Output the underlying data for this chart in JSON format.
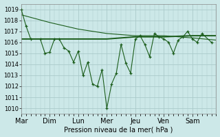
{
  "bg_color": "#cce8e8",
  "grid_color": "#aacaca",
  "line_color": "#1a5c1a",
  "xlabel": "Pression niveau de la mer( hPa )",
  "ylim": [
    1009.5,
    1019.5
  ],
  "day_labels": [
    "Mar",
    "Dim",
    "Lun",
    "Mer",
    "Jeu",
    "Ven",
    "Sam"
  ],
  "day_positions": [
    0,
    6,
    12,
    18,
    24,
    30,
    36
  ],
  "xlim_max": 41,
  "line1_x": [
    0,
    1,
    2,
    4,
    5,
    6,
    7,
    8,
    9,
    10,
    11,
    12,
    13,
    14,
    15,
    16,
    17,
    18,
    19,
    20,
    21,
    22,
    23,
    24,
    25,
    26,
    27,
    28,
    29,
    30,
    31,
    32,
    33,
    34,
    35,
    36,
    37,
    38,
    40
  ],
  "line1_y": [
    1019.0,
    1017.5,
    1016.3,
    1016.3,
    1015.0,
    1015.1,
    1016.3,
    1016.3,
    1015.5,
    1015.2,
    1014.2,
    1015.2,
    1013.0,
    1014.2,
    1012.2,
    1012.0,
    1013.5,
    1010.0,
    1012.2,
    1013.2,
    1015.8,
    1014.1,
    1013.2,
    1016.3,
    1016.6,
    1015.8,
    1014.7,
    1016.8,
    1016.5,
    1016.3,
    1016.0,
    1015.0,
    1016.2,
    1016.5,
    1017.0,
    1016.3,
    1016.0,
    1016.8,
    1016.0
  ],
  "line2_x": [
    0,
    6,
    12,
    18,
    24,
    30,
    36,
    41
  ],
  "line2_y": [
    1016.3,
    1016.3,
    1016.3,
    1016.3,
    1016.5,
    1016.5,
    1016.6,
    1016.6
  ],
  "line3_x": [
    0,
    6,
    12,
    18,
    24,
    30,
    36,
    41
  ],
  "line3_y": [
    1018.5,
    1017.8,
    1017.2,
    1016.8,
    1016.6,
    1016.6,
    1016.4,
    1016.2
  ],
  "marker": "+"
}
